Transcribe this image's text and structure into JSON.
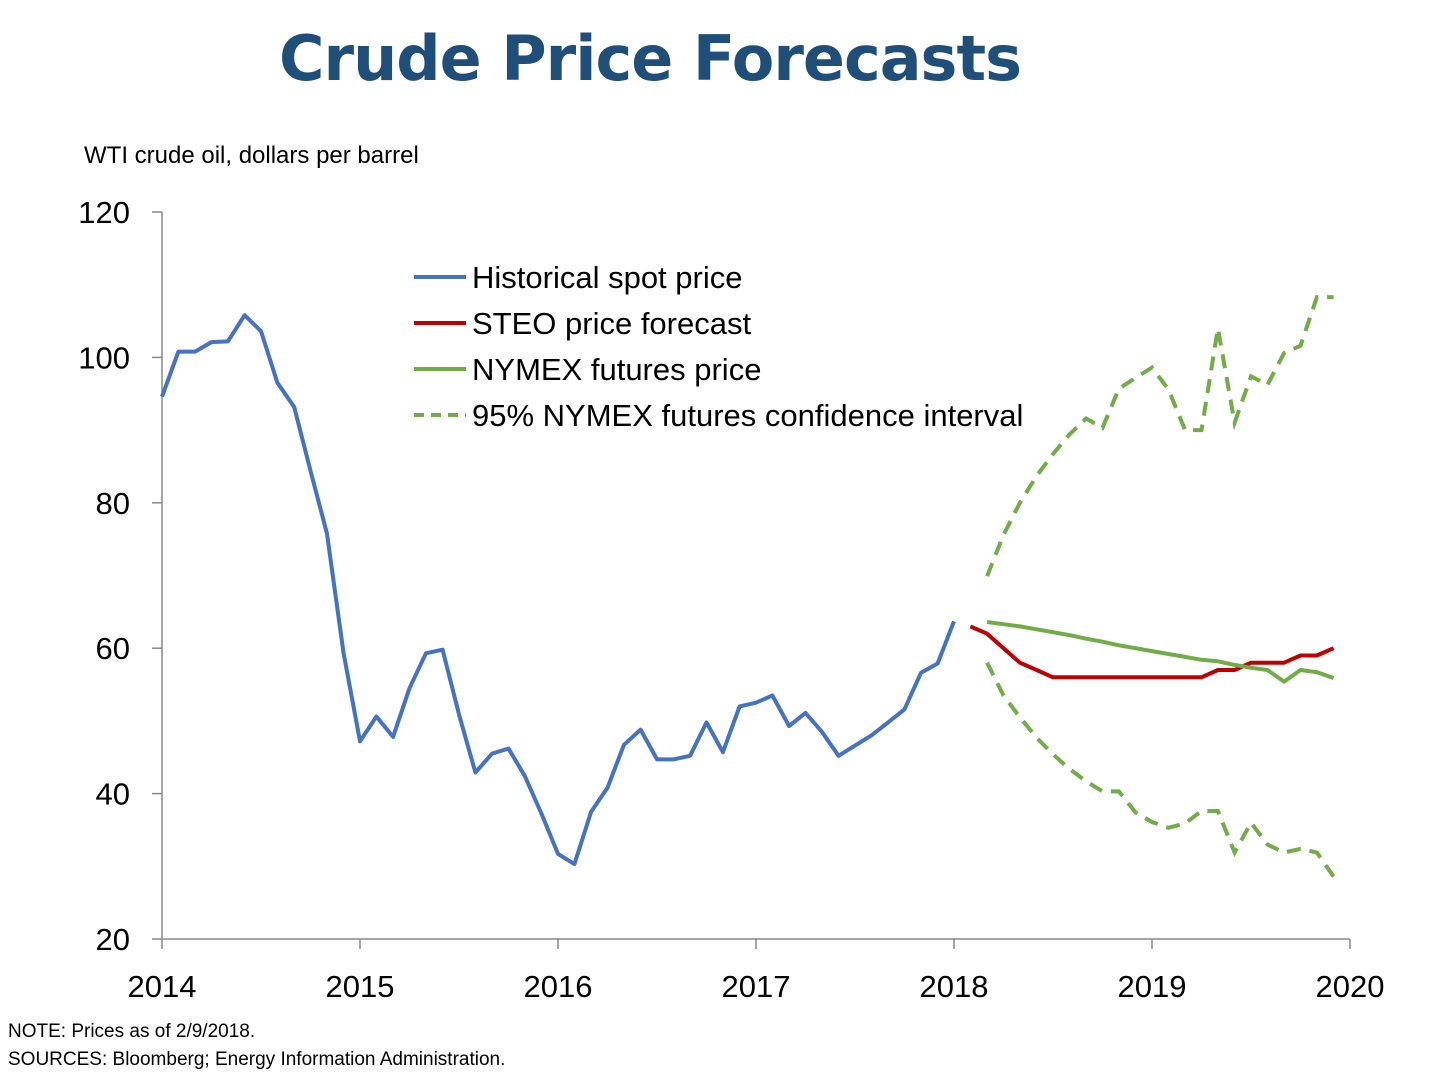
{
  "page": {
    "title": "Crude Price Forecasts"
  },
  "notes": {
    "note": "NOTE: Prices as of 2/9/2018.",
    "sources": "SOURCES: Bloomberg; Energy Information Administration."
  },
  "chart_data": {
    "type": "line",
    "title": "Crude Price Forecasts",
    "ylabel": "WTI crude oil, dollars per barrel",
    "xlabel": "",
    "xlim": [
      2014,
      2020
    ],
    "ylim": [
      20,
      120
    ],
    "x_ticks": [
      2014,
      2015,
      2016,
      2017,
      2018,
      2019,
      2020
    ],
    "x_tick_labels": [
      "2014",
      "2015",
      "2016",
      "2017",
      "2018",
      "2019",
      "2020"
    ],
    "y_ticks": [
      20,
      40,
      60,
      80,
      100,
      120
    ],
    "y_tick_labels": [
      "20",
      "40",
      "60",
      "80",
      "100",
      "120"
    ],
    "grid": false,
    "legend": "top-center",
    "series": [
      {
        "name": "Historical spot price",
        "color": "#4472c4",
        "style": "solid",
        "x": [
          2014.0,
          2014.083,
          2014.167,
          2014.25,
          2014.333,
          2014.417,
          2014.5,
          2014.583,
          2014.667,
          2014.75,
          2014.833,
          2014.917,
          2015.0,
          2015.083,
          2015.167,
          2015.25,
          2015.333,
          2015.417,
          2015.5,
          2015.583,
          2015.667,
          2015.75,
          2015.833,
          2015.917,
          2016.0,
          2016.083,
          2016.167,
          2016.25,
          2016.333,
          2016.417,
          2016.5,
          2016.583,
          2016.667,
          2016.75,
          2016.833,
          2016.917,
          2017.0,
          2017.083,
          2017.167,
          2017.25,
          2017.333,
          2017.417,
          2017.5,
          2017.583,
          2017.667,
          2017.75,
          2017.833,
          2017.917,
          2018.0
        ],
        "values": [
          94.6,
          100.8,
          100.8,
          102.1,
          102.2,
          105.8,
          103.6,
          96.5,
          93.2,
          84.4,
          75.8,
          59.3,
          47.2,
          50.6,
          47.8,
          54.5,
          59.3,
          59.8,
          50.9,
          42.9,
          45.5,
          46.2,
          42.4,
          37.2,
          31.7,
          30.3,
          37.5,
          40.8,
          46.7,
          48.8,
          44.7,
          44.7,
          45.2,
          49.8,
          45.7,
          52.0,
          52.5,
          53.5,
          49.3,
          51.1,
          48.5,
          45.2,
          46.6,
          48.0,
          49.8,
          51.6,
          56.6,
          57.9,
          63.7
        ]
      },
      {
        "name": "STEO price forecast",
        "color": "#c00000",
        "style": "solid",
        "x": [
          2018.083,
          2018.167,
          2018.25,
          2018.333,
          2018.417,
          2018.5,
          2018.583,
          2018.667,
          2018.75,
          2018.833,
          2018.917,
          2019.0,
          2019.083,
          2019.167,
          2019.25,
          2019.333,
          2019.417,
          2019.5,
          2019.583,
          2019.667,
          2019.75,
          2019.833,
          2019.917
        ],
        "values": [
          63,
          62,
          60,
          58,
          57,
          56,
          56,
          56,
          56,
          56,
          56,
          56,
          56,
          56,
          56,
          57,
          57,
          58,
          58,
          58,
          59,
          59,
          60
        ]
      },
      {
        "name": "NYMEX futures price",
        "color": "#70ad47",
        "style": "solid",
        "x": [
          2018.167,
          2018.25,
          2018.333,
          2018.417,
          2018.5,
          2018.583,
          2018.667,
          2018.75,
          2018.833,
          2018.917,
          2019.0,
          2019.083,
          2019.167,
          2019.25,
          2019.333,
          2019.417,
          2019.5,
          2019.583,
          2019.667,
          2019.75,
          2019.833,
          2019.917
        ],
        "values": [
          63.6,
          63.3,
          63.0,
          62.6,
          62.2,
          61.8,
          61.3,
          60.9,
          60.4,
          60.0,
          59.6,
          59.2,
          58.8,
          58.4,
          58.2,
          57.7,
          57.3,
          57.0,
          55.4,
          57.0,
          56.7,
          55.9
        ]
      },
      {
        "name": "95% NYMEX futures confidence interval",
        "color": "#70ad47",
        "style": "dashed",
        "x": [
          2018.167,
          2018.25,
          2018.333,
          2018.417,
          2018.5,
          2018.583,
          2018.667,
          2018.75,
          2018.833,
          2018.917,
          2019.0,
          2019.083,
          2019.167,
          2019.25,
          2019.333,
          2019.417,
          2019.5,
          2019.583,
          2019.667,
          2019.75,
          2019.833,
          2019.917
        ],
        "upper": [
          69.9,
          75.6,
          80.0,
          83.7,
          86.7,
          89.4,
          91.6,
          90.3,
          95.7,
          97.2,
          98.6,
          95.6,
          90.0,
          90.0,
          104.0,
          91.0,
          97.4,
          96.2,
          100.6,
          101.6,
          108.3,
          108.3
        ],
        "lower": [
          58.0,
          53.5,
          50.5,
          47.7,
          45.4,
          43.4,
          41.7,
          40.3,
          40.3,
          37.4,
          36.1,
          35.3,
          35.9,
          37.6,
          37.6,
          31.9,
          36.0,
          33.0,
          31.9,
          32.4,
          31.9,
          28.6
        ]
      }
    ]
  }
}
